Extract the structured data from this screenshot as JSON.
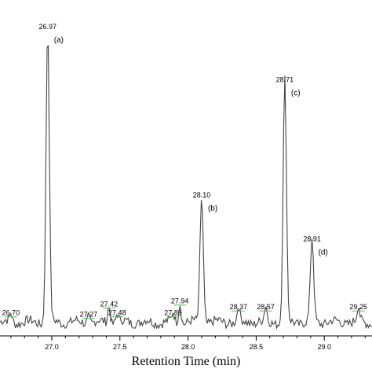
{
  "chart_data": {
    "type": "line",
    "xlabel": "Retention Time (min)",
    "xlim": [
      26.62,
      29.35
    ],
    "ylim": [
      0,
      100
    ],
    "x_ticks": [
      "27.0",
      "27.5",
      "28.0",
      "28.5",
      "29.0"
    ],
    "x_tick_values": [
      27.0,
      27.5,
      28.0,
      28.5,
      29.0
    ],
    "grid": false,
    "line_color": "#444444",
    "peaks": [
      {
        "x": 26.7,
        "label": "26.70",
        "height": 3
      },
      {
        "x": 26.97,
        "label": "26.97",
        "height": 100,
        "tag": "(a)"
      },
      {
        "x": 27.27,
        "label": "27.27",
        "height": 2.5
      },
      {
        "x": 27.42,
        "label": "27.42",
        "height": 6
      },
      {
        "x": 27.48,
        "label": "27.48",
        "height": 3
      },
      {
        "x": 27.89,
        "label": "27.89",
        "height": 3
      },
      {
        "x": 27.94,
        "label": "27.94",
        "height": 7
      },
      {
        "x": 28.1,
        "label": "28.10",
        "height": 43,
        "tag": "(b)"
      },
      {
        "x": 28.37,
        "label": "28.37",
        "height": 5
      },
      {
        "x": 28.57,
        "label": "28.57",
        "height": 5
      },
      {
        "x": 28.71,
        "label": "28.71",
        "height": 82,
        "tag": "(c)"
      },
      {
        "x": 28.91,
        "label": "28.91",
        "height": 28,
        "tag": "(d)"
      },
      {
        "x": 29.25,
        "label": "29.25",
        "height": 5
      }
    ]
  }
}
